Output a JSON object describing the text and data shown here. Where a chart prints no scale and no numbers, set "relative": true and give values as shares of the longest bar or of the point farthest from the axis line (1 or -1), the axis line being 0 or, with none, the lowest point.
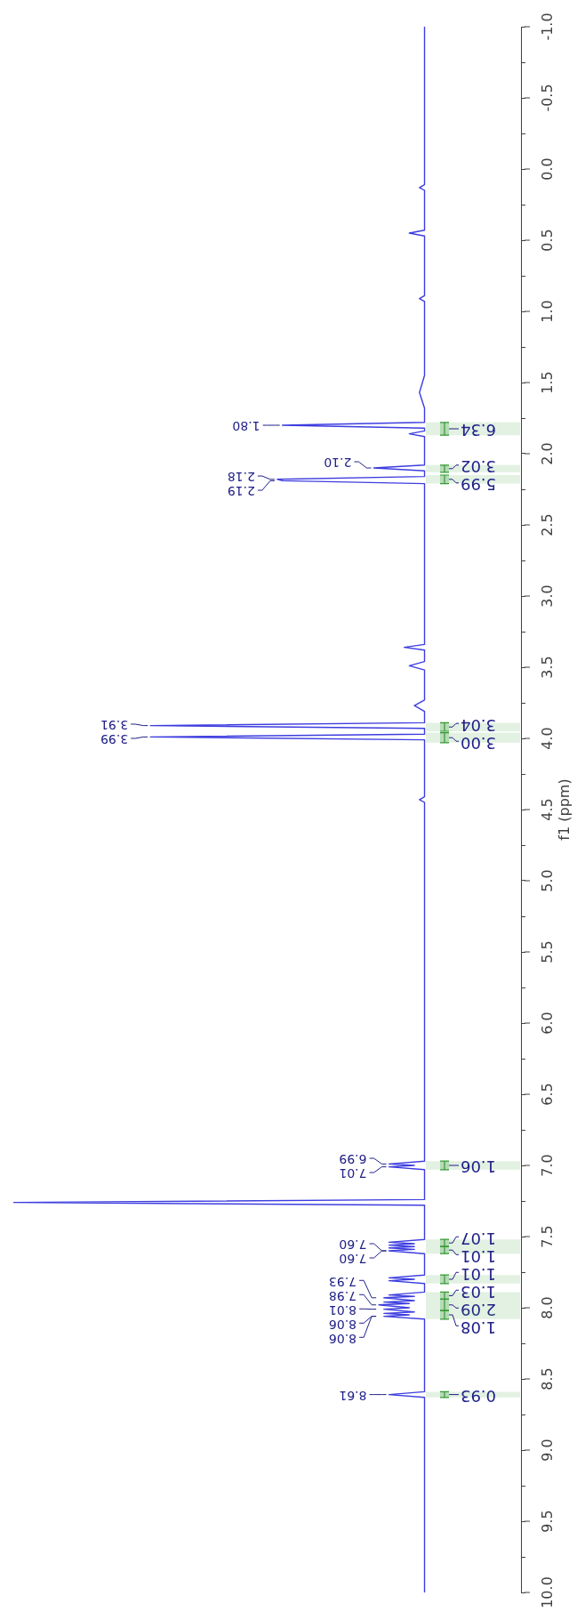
{
  "chart_data": {
    "type": "line",
    "orientation": "horizontal",
    "relative": true,
    "ylabel": "f1 (ppm)",
    "ylim": [
      10,
      -1
    ],
    "yticks": [
      {
        "value": -1,
        "label": "-1.0"
      },
      {
        "value": -0.75,
        "label": null
      },
      {
        "value": -0.5,
        "label": "-0.5"
      },
      {
        "value": -0.25,
        "label": null
      },
      {
        "value": 0,
        "label": "0.0"
      },
      {
        "value": 0.25,
        "label": null
      },
      {
        "value": 0.5,
        "label": "0.5"
      },
      {
        "value": 0.75,
        "label": null
      },
      {
        "value": 1,
        "label": "1.0"
      },
      {
        "value": 1.25,
        "label": null
      },
      {
        "value": 1.5,
        "label": "1.5"
      },
      {
        "value": 1.75,
        "label": null
      },
      {
        "value": 2,
        "label": "2.0"
      },
      {
        "value": 2.25,
        "label": null
      },
      {
        "value": 2.5,
        "label": "2.5"
      },
      {
        "value": 2.75,
        "label": null
      },
      {
        "value": 3,
        "label": "3.0"
      },
      {
        "value": 3.25,
        "label": null
      },
      {
        "value": 3.5,
        "label": "3.5"
      },
      {
        "value": 3.75,
        "label": null
      },
      {
        "value": 4,
        "label": "4.0"
      },
      {
        "value": 4.25,
        "label": null
      },
      {
        "value": 4.5,
        "label": "4.5"
      },
      {
        "value": 4.75,
        "label": null
      },
      {
        "value": 5,
        "label": "5.0"
      },
      {
        "value": 5.25,
        "label": null
      },
      {
        "value": 5.5,
        "label": "5.5"
      },
      {
        "value": 5.75,
        "label": null
      },
      {
        "value": 6,
        "label": "6.0"
      },
      {
        "value": 6.25,
        "label": null
      },
      {
        "value": 6.5,
        "label": "6.5"
      },
      {
        "value": 6.75,
        "label": null
      },
      {
        "value": 7,
        "label": "7.0"
      },
      {
        "value": 7.25,
        "label": null
      },
      {
        "value": 7.5,
        "label": "7.5"
      },
      {
        "value": 7.75,
        "label": null
      },
      {
        "value": 8,
        "label": "8.0"
      },
      {
        "value": 8.25,
        "label": null
      },
      {
        "value": 8.5,
        "label": "8.5"
      },
      {
        "value": 8.75,
        "label": null
      },
      {
        "value": 9,
        "label": "9.0"
      },
      {
        "value": 9.25,
        "label": null
      },
      {
        "value": 9.5,
        "label": "9.5"
      },
      {
        "value": 9.75,
        "label": null
      },
      {
        "value": 10,
        "label": "10.0"
      }
    ],
    "x": [
      -1,
      0.11,
      0.13,
      0.15,
      0.43,
      0.45,
      0.47,
      0.89,
      0.91,
      0.93,
      1.45,
      1.57,
      1.68,
      1.78,
      1.8,
      1.82,
      1.84,
      1.86,
      1.88,
      2.08,
      2.1,
      2.12,
      2.16,
      2.18,
      2.19,
      2.21,
      3.34,
      3.36,
      3.38,
      3.46,
      3.49,
      3.52,
      3.73,
      3.77,
      3.81,
      3.89,
      3.91,
      3.93,
      3.97,
      3.99,
      4.01,
      4.41,
      4.43,
      4.45,
      6.97,
      6.99,
      7,
      7.01,
      7.03,
      7.24,
      7.26,
      7.28,
      7.52,
      7.54,
      7.55,
      7.56,
      7.57,
      7.58,
      7.59,
      7.6,
      7.62,
      7.77,
      7.79,
      7.8,
      7.81,
      7.83,
      7.89,
      7.91,
      7.92,
      7.93,
      7.95,
      7.96,
      7.97,
      7.98,
      8,
      8.01,
      8.03,
      8.04,
      8.05,
      8.06,
      8.08,
      8.59,
      8.61,
      8.63,
      10
    ],
    "values": [
      -0.19,
      -0.19,
      -0.2,
      -0.19,
      -0.19,
      -0.22,
      -0.19,
      -0.19,
      -0.2,
      -0.19,
      -0.19,
      -0.2,
      -0.19,
      -0.19,
      -0.47,
      -0.19,
      -0.19,
      -0.22,
      -0.19,
      -0.19,
      -0.29,
      -0.19,
      -0.19,
      -0.48,
      -0.47,
      -0.19,
      -0.19,
      -0.23,
      -0.19,
      -0.19,
      -0.22,
      -0.19,
      -0.19,
      -0.21,
      -0.19,
      -0.19,
      -0.73,
      -0.19,
      -0.19,
      -0.73,
      -0.19,
      -0.19,
      -0.2,
      -0.19,
      -0.19,
      -0.26,
      -0.21,
      -0.26,
      -0.19,
      -0.19,
      -1,
      -0.19,
      -0.19,
      -0.26,
      -0.21,
      -0.26,
      -0.21,
      -0.26,
      -0.21,
      -0.26,
      -0.19,
      -0.19,
      -0.26,
      -0.21,
      -0.26,
      -0.19,
      -0.19,
      -0.26,
      -0.21,
      -0.27,
      -0.21,
      -0.27,
      -0.22,
      -0.28,
      -0.22,
      -0.27,
      -0.21,
      -0.27,
      -0.22,
      -0.27,
      -0.19,
      -0.19,
      -0.26,
      -0.19,
      -0.19
    ],
    "color": "#3d3de0",
    "annotations": [
      {
        "text": "1.80",
        "x": -0.47,
        "y": 1.8
      },
      {
        "text": "2.10",
        "x": -0.29,
        "y": 2.1
      },
      {
        "text": "2.18",
        "x": -0.48,
        "y": 2.18
      },
      {
        "text": "2.19",
        "x": -0.47,
        "y": 2.19
      },
      {
        "text": "3.91",
        "x": -0.73,
        "y": 3.91
      },
      {
        "text": "3.99",
        "x": -0.73,
        "y": 3.99
      },
      {
        "text": "6.99",
        "x": -0.26,
        "y": 6.99
      },
      {
        "text": "7.01",
        "x": -0.26,
        "y": 7.01
      },
      {
        "text": "7.60",
        "x": -0.26,
        "y": 7.6
      },
      {
        "text": "7.60",
        "x": -0.26,
        "y": 7.6
      },
      {
        "text": "7.93",
        "x": -0.27,
        "y": 7.93
      },
      {
        "text": "7.98",
        "x": -0.28,
        "y": 7.98
      },
      {
        "text": "8.01",
        "x": -0.27,
        "y": 8.01
      },
      {
        "text": "8.06",
        "x": -0.27,
        "y": 8.06
      },
      {
        "text": "8.06",
        "x": -0.27,
        "y": 8.06
      },
      {
        "text": "8.61",
        "x": -0.26,
        "y": 8.61
      }
    ],
    "bands": [
      {
        "axis": "y",
        "from": 1.78,
        "to": 1.87,
        "label": "6.34",
        "color": "#339933"
      },
      {
        "axis": "y",
        "from": 2.08,
        "to": 2.13,
        "label": "3.02",
        "color": "#339933"
      },
      {
        "axis": "y",
        "from": 2.15,
        "to": 2.21,
        "label": "5.99",
        "color": "#339933"
      },
      {
        "axis": "y",
        "from": 3.89,
        "to": 3.95,
        "label": "3.04",
        "color": "#339933"
      },
      {
        "axis": "y",
        "from": 3.96,
        "to": 4.03,
        "label": "3.00",
        "color": "#339933"
      },
      {
        "axis": "y",
        "from": 6.97,
        "to": 7.03,
        "label": "1.06",
        "color": "#339933"
      },
      {
        "axis": "y",
        "from": 7.52,
        "to": 7.57,
        "label": "1.07",
        "color": "#339933"
      },
      {
        "axis": "y",
        "from": 7.57,
        "to": 7.62,
        "label": "1.01",
        "color": "#339933"
      },
      {
        "axis": "y",
        "from": 7.77,
        "to": 7.83,
        "label": "1.01",
        "color": "#339933"
      },
      {
        "axis": "y",
        "from": 7.89,
        "to": 7.94,
        "label": "1.03",
        "color": "#339933"
      },
      {
        "axis": "y",
        "from": 7.94,
        "to": 8.02,
        "label": "2.09",
        "color": "#339933"
      },
      {
        "axis": "y",
        "from": 8.02,
        "to": 8.08,
        "label": "1.08",
        "color": "#339933"
      },
      {
        "axis": "y",
        "from": 8.59,
        "to": 8.63,
        "label": "0.93",
        "color": "#339933"
      }
    ]
  }
}
